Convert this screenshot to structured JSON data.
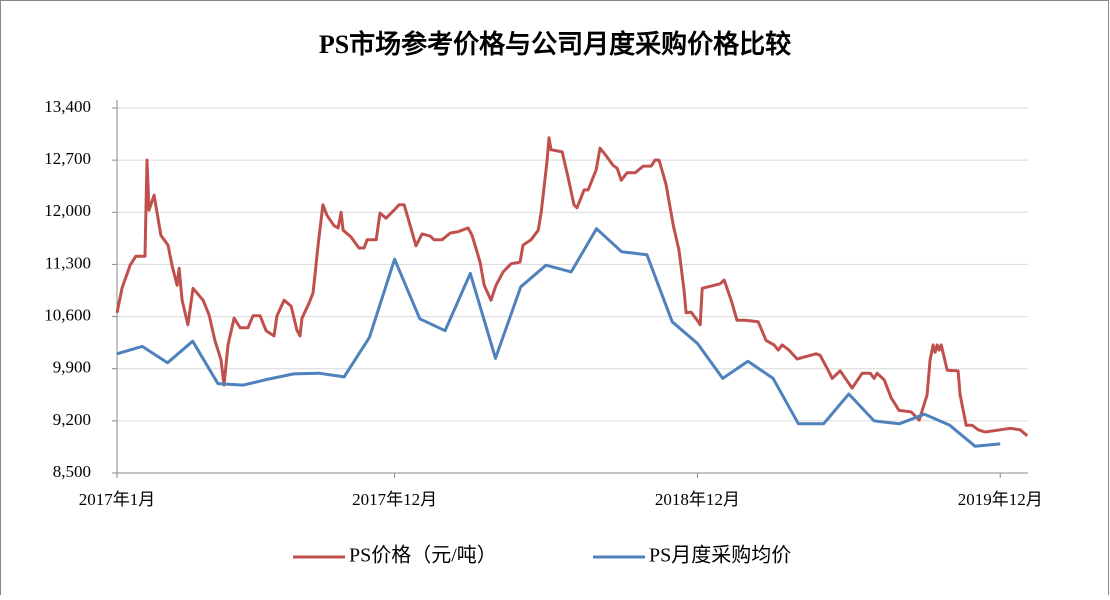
{
  "chart_data": {
    "type": "line",
    "title": "PS市场参考价格与公司月度采购价格比较",
    "xlim": [
      0,
      36.1
    ],
    "xticks": [
      {
        "value": 0,
        "label": "2017年1月"
      },
      {
        "value": 11,
        "label": "2017年12月"
      },
      {
        "value": 23,
        "label": "2018年12月"
      },
      {
        "value": 35,
        "label": "2019年12月"
      }
    ],
    "ylim": [
      8500,
      13400
    ],
    "yticks": [
      {
        "value": 8500,
        "label": "8,500"
      },
      {
        "value": 9200,
        "label": "9,200"
      },
      {
        "value": 9900,
        "label": "9,900"
      },
      {
        "value": 10600,
        "label": "10,600"
      },
      {
        "value": 11300,
        "label": "11,300"
      },
      {
        "value": 12000,
        "label": "12,000"
      },
      {
        "value": 12700,
        "label": "12,700"
      },
      {
        "value": 13400,
        "label": "13,400"
      }
    ],
    "grid": true,
    "legend": "bottom",
    "series": [
      {
        "name": "PS价格（元/吨）",
        "color": "#c0504d",
        "x": [
          0,
          0.2,
          0.52,
          0.75,
          1.11,
          1.19,
          1.27,
          1.47,
          1.74,
          2.02,
          2.18,
          2.38,
          2.46,
          2.58,
          2.81,
          3.01,
          3.41,
          3.65,
          3.88,
          4.12,
          4.24,
          4.4,
          4.64,
          4.88,
          5.19,
          5.39,
          5.67,
          5.91,
          6.22,
          6.34,
          6.62,
          6.9,
          7.13,
          7.25,
          7.33,
          7.61,
          7.77,
          7.97,
          8.16,
          8.32,
          8.6,
          8.76,
          8.88,
          8.96,
          9.27,
          9.59,
          9.79,
          9.91,
          10.27,
          10.42,
          10.66,
          10.98,
          11.18,
          11.38,
          11.61,
          11.85,
          12.09,
          12.41,
          12.56,
          12.88,
          13.2,
          13.52,
          13.91,
          14.07,
          14.39,
          14.55,
          14.82,
          15.02,
          15.3,
          15.62,
          15.97,
          16.09,
          16.41,
          16.69,
          16.81,
          17.04,
          17.12,
          17.2,
          17.64,
          17.88,
          18.11,
          18.23,
          18.51,
          18.67,
          18.99,
          19.14,
          19.38,
          19.66,
          19.82,
          19.98,
          20.21,
          20.53,
          20.85,
          21.17,
          21.32,
          21.48,
          21.76,
          22.04,
          22.27,
          22.47,
          22.55,
          22.75,
          22.99,
          23.11,
          23.19,
          23.9,
          24.06,
          24.34,
          24.57,
          24.89,
          25.41,
          25.72,
          26.04,
          26.2,
          26.36,
          26.63,
          26.95,
          27.7,
          27.86,
          28.18,
          28.34,
          28.66,
          29.13,
          29.53,
          29.85,
          30,
          30.12,
          30.4,
          30.68,
          30.99,
          31.47,
          31.79,
          32.1,
          32.22,
          32.34,
          32.42,
          32.5,
          32.58,
          32.66,
          32.9,
          33.33,
          33.41,
          33.65,
          33.89,
          34.13,
          34.4,
          35,
          35.39,
          35.79,
          36.07
        ],
        "values": [
          10650,
          10980,
          11290,
          11410,
          11410,
          12700,
          12030,
          12230,
          11690,
          11560,
          11290,
          11020,
          11250,
          10820,
          10490,
          10980,
          10820,
          10620,
          10280,
          10020,
          9680,
          10220,
          10580,
          10450,
          10450,
          10610,
          10610,
          10410,
          10340,
          10610,
          10820,
          10740,
          10420,
          10340,
          10580,
          10780,
          10920,
          11560,
          12100,
          11960,
          11820,
          11790,
          12000,
          11760,
          11670,
          11520,
          11520,
          11630,
          11630,
          11990,
          11920,
          12030,
          12100,
          12100,
          11830,
          11550,
          11710,
          11680,
          11630,
          11630,
          11720,
          11740,
          11790,
          11690,
          11330,
          11020,
          10820,
          11020,
          11200,
          11310,
          11330,
          11560,
          11630,
          11760,
          12000,
          12680,
          13000,
          12840,
          12810,
          12460,
          12100,
          12060,
          12300,
          12300,
          12570,
          12860,
          12760,
          12630,
          12590,
          12430,
          12530,
          12530,
          12620,
          12620,
          12700,
          12700,
          12370,
          11830,
          11490,
          10960,
          10650,
          10660,
          10550,
          10490,
          10980,
          11040,
          11090,
          10820,
          10550,
          10550,
          10530,
          10280,
          10220,
          10150,
          10220,
          10150,
          10030,
          10100,
          10080,
          9880,
          9770,
          9870,
          9640,
          9840,
          9840,
          9770,
          9840,
          9750,
          9510,
          9340,
          9320,
          9210,
          9550,
          10020,
          10220,
          10120,
          10220,
          10150,
          10220,
          9880,
          9870,
          9550,
          9140,
          9140,
          9080,
          9050,
          9080,
          9100,
          9080,
          9000
        ]
      },
      {
        "name": "PS月度采购均价",
        "color": "#4f81bd",
        "x": [
          0,
          1,
          2,
          3,
          4,
          5,
          6,
          7,
          8,
          9,
          10,
          11,
          12,
          13,
          14,
          15,
          16,
          17,
          18,
          19,
          20,
          21,
          22,
          23,
          24,
          25,
          26,
          27,
          28,
          29,
          30,
          31,
          32,
          33,
          34,
          35
        ],
        "values": [
          10100,
          10200,
          9980,
          10270,
          9700,
          9680,
          9760,
          9830,
          9840,
          9790,
          10320,
          11370,
          10570,
          10410,
          11180,
          10040,
          11000,
          11290,
          11200,
          11780,
          11470,
          11430,
          10530,
          10240,
          9770,
          10000,
          9770,
          9160,
          9160,
          9560,
          9200,
          9160,
          9290,
          9140,
          8860,
          8890
        ]
      }
    ]
  }
}
